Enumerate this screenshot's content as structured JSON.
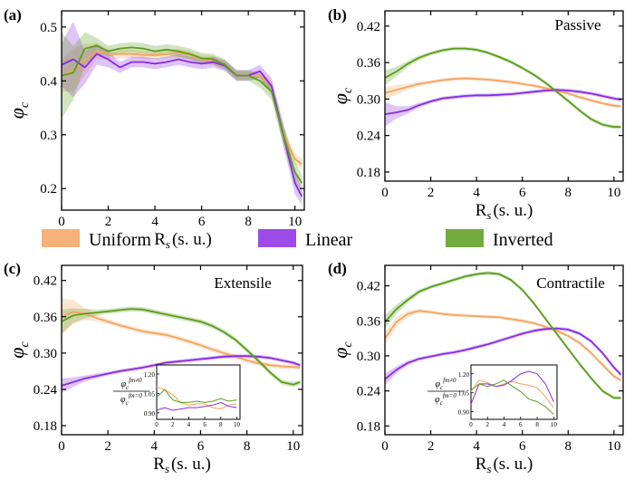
{
  "figure_legend": [
    {
      "name": "Uniform",
      "color": "#f4a460"
    },
    {
      "name": "Linear",
      "color": "#8a2be2"
    },
    {
      "name": "Inverted",
      "color": "#5a9e1c"
    }
  ],
  "chart_data": [
    {
      "type": "line",
      "panel_label": "(a)",
      "title": "",
      "xlabel": "R_s (s. u.)",
      "ylabel": "φ_c",
      "xlim": [
        0,
        10.4
      ],
      "ylim": [
        0.16,
        0.53
      ],
      "xticks": [
        "0",
        "2",
        "4",
        "6",
        "8",
        "10"
      ],
      "yticks": [
        "0.2",
        "0.3",
        "0.4",
        "0.5"
      ],
      "x": [
        0.0,
        0.5,
        1.0,
        1.5,
        2.0,
        2.5,
        3.0,
        3.5,
        4.0,
        4.5,
        5.0,
        5.5,
        6.0,
        6.5,
        7.0,
        7.5,
        8.0,
        8.5,
        9.0,
        9.5,
        10.0,
        10.3
      ],
      "series": [
        {
          "name": "Uniform",
          "values": [
            0.41,
            0.42,
            0.44,
            0.455,
            0.45,
            0.45,
            0.45,
            0.448,
            0.448,
            0.45,
            0.452,
            0.448,
            0.44,
            0.438,
            0.43,
            0.41,
            0.41,
            0.41,
            0.39,
            0.3,
            0.255,
            0.245
          ],
          "band": [
            0.03,
            0.04,
            0.03,
            0.015,
            0.01,
            0.008,
            0.008,
            0.008,
            0.008,
            0.008,
            0.008,
            0.008,
            0.008,
            0.008,
            0.008,
            0.008,
            0.008,
            0.008,
            0.01,
            0.015,
            0.01,
            0.01
          ]
        },
        {
          "name": "Linear",
          "values": [
            0.43,
            0.44,
            0.425,
            0.45,
            0.44,
            0.425,
            0.435,
            0.435,
            0.432,
            0.435,
            0.44,
            0.435,
            0.432,
            0.435,
            0.428,
            0.41,
            0.41,
            0.418,
            0.39,
            0.3,
            0.21,
            0.185
          ],
          "band": [
            0.04,
            0.07,
            0.03,
            0.02,
            0.015,
            0.01,
            0.01,
            0.01,
            0.01,
            0.01,
            0.01,
            0.01,
            0.01,
            0.01,
            0.01,
            0.01,
            0.01,
            0.012,
            0.015,
            0.02,
            0.02,
            0.015
          ]
        },
        {
          "name": "Inverted",
          "values": [
            0.41,
            0.415,
            0.46,
            0.465,
            0.455,
            0.46,
            0.462,
            0.46,
            0.455,
            0.458,
            0.455,
            0.45,
            0.442,
            0.44,
            0.43,
            0.41,
            0.41,
            0.4,
            0.38,
            0.3,
            0.23,
            0.21
          ],
          "band": [
            0.08,
            0.05,
            0.03,
            0.015,
            0.01,
            0.01,
            0.01,
            0.01,
            0.01,
            0.01,
            0.01,
            0.01,
            0.01,
            0.01,
            0.01,
            0.01,
            0.01,
            0.012,
            0.015,
            0.02,
            0.02,
            0.015
          ]
        }
      ]
    },
    {
      "type": "line",
      "panel_label": "(b)",
      "title": "Passive",
      "xlabel": "R_s (s. u.)",
      "ylabel": "φ_c",
      "xlim": [
        0,
        10.4
      ],
      "ylim": [
        0.165,
        0.445
      ],
      "xticks": [
        "0",
        "2",
        "4",
        "6",
        "8",
        "10"
      ],
      "yticks": [
        "0.18",
        "0.24",
        "0.30",
        "0.36",
        "0.42"
      ],
      "x": [
        0.0,
        0.5,
        1.0,
        1.5,
        2.0,
        2.5,
        3.0,
        3.5,
        4.0,
        4.5,
        5.0,
        5.5,
        6.0,
        6.5,
        7.0,
        7.5,
        8.0,
        8.5,
        9.0,
        9.5,
        10.0,
        10.3
      ],
      "series": [
        {
          "name": "Uniform",
          "values": [
            0.31,
            0.315,
            0.32,
            0.325,
            0.328,
            0.331,
            0.333,
            0.334,
            0.333,
            0.332,
            0.33,
            0.328,
            0.325,
            0.322,
            0.318,
            0.314,
            0.309,
            0.303,
            0.298,
            0.293,
            0.289,
            0.288
          ],
          "band": [
            0.01,
            0.008,
            0.005,
            0.004,
            0.003,
            0.003,
            0.003,
            0.003,
            0.003,
            0.003,
            0.003,
            0.003,
            0.003,
            0.003,
            0.003,
            0.003,
            0.003,
            0.003,
            0.003,
            0.003,
            0.003,
            0.003
          ]
        },
        {
          "name": "Linear",
          "values": [
            0.275,
            0.278,
            0.282,
            0.29,
            0.296,
            0.301,
            0.303,
            0.305,
            0.306,
            0.306,
            0.307,
            0.308,
            0.31,
            0.312,
            0.314,
            0.315,
            0.314,
            0.312,
            0.309,
            0.305,
            0.301,
            0.299
          ],
          "band": [
            0.02,
            0.01,
            0.006,
            0.004,
            0.003,
            0.003,
            0.003,
            0.003,
            0.003,
            0.003,
            0.003,
            0.003,
            0.003,
            0.003,
            0.003,
            0.003,
            0.003,
            0.003,
            0.003,
            0.003,
            0.003,
            0.003
          ]
        },
        {
          "name": "Inverted",
          "values": [
            0.335,
            0.345,
            0.358,
            0.368,
            0.375,
            0.38,
            0.383,
            0.383,
            0.381,
            0.376,
            0.369,
            0.361,
            0.351,
            0.34,
            0.327,
            0.312,
            0.297,
            0.281,
            0.267,
            0.258,
            0.254,
            0.254
          ],
          "band": [
            0.012,
            0.008,
            0.005,
            0.004,
            0.003,
            0.003,
            0.003,
            0.003,
            0.003,
            0.003,
            0.003,
            0.003,
            0.003,
            0.003,
            0.003,
            0.003,
            0.003,
            0.003,
            0.003,
            0.003,
            0.003,
            0.003
          ]
        }
      ]
    },
    {
      "type": "line",
      "panel_label": "(c)",
      "title": "Extensile",
      "xlabel": "R_s (s. u.)",
      "ylabel": "φ_c",
      "xlim": [
        0,
        10.4
      ],
      "ylim": [
        0.165,
        0.445
      ],
      "xticks": [
        "0",
        "2",
        "4",
        "6",
        "8",
        "10"
      ],
      "yticks": [
        "0.18",
        "0.24",
        "0.30",
        "0.36",
        "0.42"
      ],
      "x": [
        0.0,
        0.5,
        1.0,
        1.5,
        2.0,
        2.5,
        3.0,
        3.5,
        4.0,
        4.5,
        5.0,
        5.5,
        6.0,
        6.5,
        7.0,
        7.5,
        8.0,
        8.5,
        9.0,
        9.5,
        10.0,
        10.3
      ],
      "series": [
        {
          "name": "Uniform",
          "values": [
            0.36,
            0.368,
            0.365,
            0.358,
            0.352,
            0.346,
            0.341,
            0.336,
            0.333,
            0.33,
            0.325,
            0.319,
            0.313,
            0.306,
            0.3,
            0.294,
            0.288,
            0.283,
            0.28,
            0.278,
            0.277,
            0.276
          ],
          "band": [
            0.03,
            0.02,
            0.01,
            0.006,
            0.004,
            0.004,
            0.004,
            0.004,
            0.004,
            0.004,
            0.004,
            0.004,
            0.004,
            0.004,
            0.004,
            0.004,
            0.004,
            0.004,
            0.004,
            0.004,
            0.004,
            0.004
          ]
        },
        {
          "name": "Linear",
          "values": [
            0.246,
            0.252,
            0.258,
            0.262,
            0.266,
            0.27,
            0.273,
            0.276,
            0.28,
            0.284,
            0.286,
            0.288,
            0.29,
            0.292,
            0.294,
            0.295,
            0.295,
            0.294,
            0.292,
            0.288,
            0.284,
            0.28
          ],
          "band": [
            0.012,
            0.008,
            0.005,
            0.004,
            0.003,
            0.003,
            0.003,
            0.003,
            0.003,
            0.003,
            0.003,
            0.003,
            0.003,
            0.003,
            0.003,
            0.003,
            0.003,
            0.003,
            0.003,
            0.003,
            0.003,
            0.003
          ]
        },
        {
          "name": "Inverted",
          "values": [
            0.352,
            0.362,
            0.365,
            0.367,
            0.369,
            0.371,
            0.373,
            0.372,
            0.368,
            0.364,
            0.36,
            0.356,
            0.352,
            0.345,
            0.335,
            0.322,
            0.305,
            0.287,
            0.268,
            0.252,
            0.248,
            0.252
          ],
          "band": [
            0.02,
            0.012,
            0.008,
            0.005,
            0.004,
            0.004,
            0.004,
            0.004,
            0.004,
            0.004,
            0.004,
            0.004,
            0.004,
            0.004,
            0.004,
            0.004,
            0.004,
            0.004,
            0.004,
            0.004,
            0.004,
            0.004
          ]
        }
      ],
      "inset": {
        "ylabel": "φ_c^{f_m≠0} / φ_c^{f_m=0}",
        "xlim": [
          0,
          10.4
        ],
        "ylim": [
          0.85,
          1.27
        ],
        "xticks": [
          "0",
          "2",
          "4",
          "6",
          "8",
          "10"
        ],
        "yticks": [
          "0.90",
          "1.05",
          "1.20"
        ],
        "x": [
          0,
          1,
          2,
          3,
          4,
          5,
          6,
          7,
          8,
          9,
          10
        ],
        "series": [
          {
            "name": "Uniform",
            "values": [
              1.1,
              1.08,
              1.04,
              0.98,
              0.96,
              0.97,
              0.97,
              0.94,
              0.93,
              0.96,
              0.97
            ]
          },
          {
            "name": "Linear",
            "values": [
              0.92,
              0.94,
              0.92,
              0.93,
              0.94,
              0.94,
              0.95,
              0.96,
              0.98,
              0.95,
              0.94
            ]
          },
          {
            "name": "Inverted",
            "values": [
              1.02,
              1.08,
              1.0,
              0.98,
              0.98,
              0.99,
              0.98,
              0.99,
              1.01,
              0.99,
              1.0
            ]
          }
        ]
      }
    },
    {
      "type": "line",
      "panel_label": "(d)",
      "title": "Contractile",
      "xlabel": "R_s (s. u.)",
      "ylabel": "φ_c",
      "xlim": [
        0,
        10.4
      ],
      "ylim": [
        0.165,
        0.455
      ],
      "xticks": [
        "0",
        "2",
        "4",
        "6",
        "8",
        "10"
      ],
      "yticks": [
        "0.18",
        "0.24",
        "0.30",
        "0.36",
        "0.42"
      ],
      "x": [
        0.0,
        0.5,
        1.0,
        1.5,
        2.0,
        2.5,
        3.0,
        3.5,
        4.0,
        4.5,
        5.0,
        5.5,
        6.0,
        6.5,
        7.0,
        7.5,
        8.0,
        8.5,
        9.0,
        9.5,
        10.0,
        10.3
      ],
      "series": [
        {
          "name": "Uniform",
          "values": [
            0.33,
            0.358,
            0.372,
            0.377,
            0.375,
            0.372,
            0.37,
            0.369,
            0.368,
            0.367,
            0.366,
            0.363,
            0.36,
            0.356,
            0.35,
            0.343,
            0.334,
            0.322,
            0.305,
            0.285,
            0.265,
            0.258
          ],
          "band": [
            0.01,
            0.008,
            0.005,
            0.004,
            0.003,
            0.003,
            0.003,
            0.003,
            0.003,
            0.003,
            0.003,
            0.003,
            0.003,
            0.003,
            0.003,
            0.003,
            0.003,
            0.003,
            0.003,
            0.003,
            0.003,
            0.003
          ]
        },
        {
          "name": "Linear",
          "values": [
            0.26,
            0.276,
            0.288,
            0.295,
            0.299,
            0.303,
            0.306,
            0.31,
            0.315,
            0.32,
            0.326,
            0.332,
            0.338,
            0.343,
            0.346,
            0.347,
            0.345,
            0.338,
            0.325,
            0.305,
            0.28,
            0.268
          ],
          "band": [
            0.01,
            0.006,
            0.004,
            0.003,
            0.003,
            0.003,
            0.003,
            0.003,
            0.003,
            0.003,
            0.003,
            0.003,
            0.003,
            0.003,
            0.003,
            0.003,
            0.003,
            0.003,
            0.003,
            0.003,
            0.003,
            0.003
          ]
        },
        {
          "name": "Inverted",
          "values": [
            0.358,
            0.38,
            0.396,
            0.41,
            0.418,
            0.424,
            0.43,
            0.436,
            0.44,
            0.442,
            0.44,
            0.43,
            0.413,
            0.39,
            0.364,
            0.338,
            0.312,
            0.286,
            0.262,
            0.24,
            0.228,
            0.228
          ],
          "band": [
            0.012,
            0.008,
            0.005,
            0.004,
            0.003,
            0.003,
            0.003,
            0.003,
            0.003,
            0.003,
            0.003,
            0.003,
            0.003,
            0.003,
            0.003,
            0.003,
            0.003,
            0.003,
            0.003,
            0.003,
            0.003,
            0.003
          ]
        }
      ],
      "inset": {
        "ylabel": "φ_c^{f_m≠0} / φ_c^{f_m=0}",
        "xlim": [
          0,
          10.4
        ],
        "ylim": [
          0.84,
          1.27
        ],
        "xticks": [
          "0",
          "2",
          "4",
          "6",
          "8",
          "10"
        ],
        "yticks": [
          "0.90",
          "1.05",
          "1.20"
        ],
        "x": [
          0,
          1,
          2,
          3,
          4,
          5,
          6,
          7,
          8,
          9,
          10
        ],
        "series": [
          {
            "name": "Uniform",
            "values": [
              1.06,
              1.15,
              1.13,
              1.1,
              1.12,
              1.14,
              1.12,
              1.11,
              1.09,
              1.02,
              0.93
            ]
          },
          {
            "name": "Linear",
            "values": [
              0.96,
              1.12,
              1.12,
              1.1,
              1.11,
              1.15,
              1.2,
              1.22,
              1.2,
              1.12,
              0.98
            ]
          },
          {
            "name": "Inverted",
            "values": [
              1.07,
              1.12,
              1.1,
              1.12,
              1.15,
              1.1,
              1.06,
              1.0,
              0.98,
              0.94,
              0.88
            ]
          }
        ]
      }
    }
  ]
}
